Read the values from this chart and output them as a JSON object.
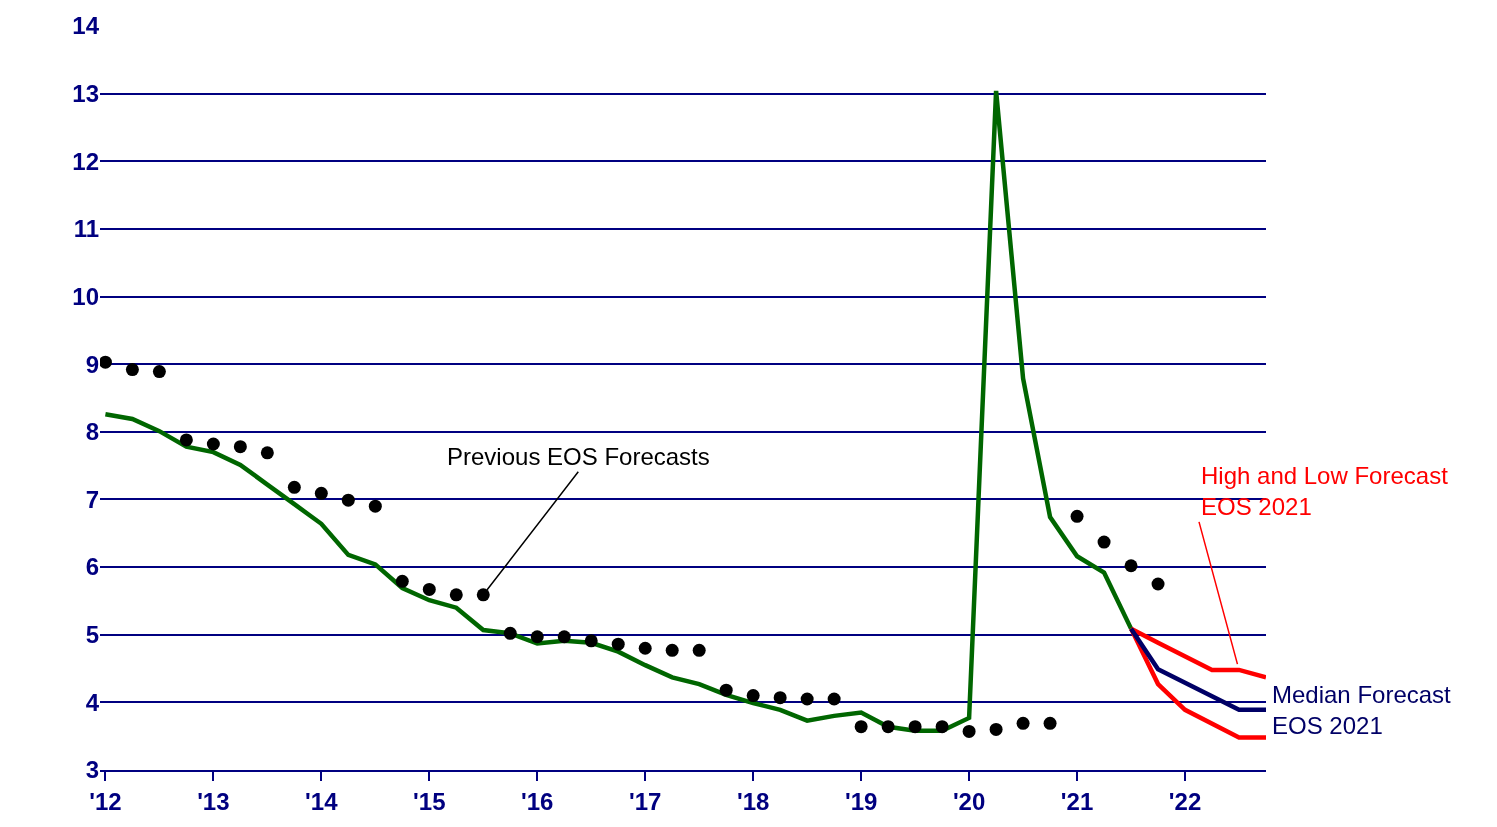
{
  "chart_data": {
    "type": "line",
    "xlim": [
      2011.95,
      2022.75
    ],
    "xticks": [
      {
        "value": 2012,
        "label": "'12"
      },
      {
        "value": 2013,
        "label": "'13"
      },
      {
        "value": 2014,
        "label": "'14"
      },
      {
        "value": 2015,
        "label": "'15"
      },
      {
        "value": 2016,
        "label": "'16"
      },
      {
        "value": 2017,
        "label": "'17"
      },
      {
        "value": 2018,
        "label": "'18"
      },
      {
        "value": 2019,
        "label": "'19"
      },
      {
        "value": 2020,
        "label": "'20"
      },
      {
        "value": 2021,
        "label": "'21"
      },
      {
        "value": 2022,
        "label": "'22"
      }
    ],
    "ylim": [
      3,
      14
    ],
    "yticks": [
      3,
      4,
      5,
      6,
      7,
      8,
      9,
      10,
      11,
      12,
      13,
      14
    ],
    "grid": "y",
    "legend": false,
    "line_style": "solid",
    "series": [
      {
        "color": "#006600",
        "marker": "none",
        "x": [
          2012.0,
          2012.25,
          2012.5,
          2012.75,
          2013.0,
          2013.25,
          2013.5,
          2013.75,
          2014.0,
          2014.25,
          2014.5,
          2014.75,
          2015.0,
          2015.25,
          2015.5,
          2015.75,
          2016.0,
          2016.25,
          2016.5,
          2016.75,
          2017.0,
          2017.25,
          2017.5,
          2017.75,
          2018.0,
          2018.25,
          2018.5,
          2018.75,
          2019.0,
          2019.25,
          2019.5,
          2019.75,
          2020.0,
          2020.25,
          2020.5,
          2020.75,
          2021.0,
          2021.25,
          2021.5
        ],
        "values": [
          8.26,
          8.19,
          8.01,
          7.78,
          7.7,
          7.51,
          7.22,
          6.93,
          6.64,
          6.18,
          6.04,
          5.69,
          5.51,
          5.4,
          5.07,
          5.02,
          4.87,
          4.91,
          4.88,
          4.75,
          4.55,
          4.37,
          4.27,
          4.11,
          3.99,
          3.89,
          3.73,
          3.8,
          3.85,
          3.64,
          3.58,
          3.58,
          3.77,
          13.04,
          8.79,
          6.74,
          6.16,
          5.92,
          5.09
        ]
      },
      {
        "type": "scatter",
        "color": "#000000",
        "marker": "circle",
        "x": [
          2012.0,
          2012.25,
          2012.5,
          2012.75,
          2013.0,
          2013.25,
          2013.5,
          2013.75,
          2014.0,
          2014.25,
          2014.5,
          2014.75,
          2015.0,
          2015.25,
          2015.5,
          2015.75,
          2016.0,
          2016.25,
          2016.5,
          2016.75,
          2017.0,
          2017.25,
          2017.5,
          2017.75,
          2018.0,
          2018.25,
          2018.5,
          2018.75,
          2019.0,
          2019.25,
          2019.5,
          2019.75,
          2020.0,
          2020.25,
          2020.5,
          2020.75,
          2021.0,
          2021.25,
          2021.5,
          2021.75
        ],
        "values": [
          9.03,
          8.92,
          8.89,
          7.88,
          7.82,
          7.78,
          7.69,
          7.18,
          7.09,
          6.99,
          6.9,
          5.79,
          5.67,
          5.59,
          5.59,
          5.02,
          4.97,
          4.97,
          4.91,
          4.86,
          4.8,
          4.77,
          4.77,
          4.18,
          4.1,
          4.07,
          4.05,
          4.05,
          3.64,
          3.64,
          3.64,
          3.64,
          3.57,
          3.6,
          3.69,
          3.69,
          6.75,
          6.37,
          6.02,
          5.75
        ]
      },
      {
        "color": "#ff0000",
        "marker": "none",
        "x": [
          2021.5,
          2021.75,
          2022.25,
          2022.5,
          2022.75
        ],
        "values": [
          5.09,
          4.88,
          4.48,
          4.48,
          4.37
        ]
      },
      {
        "color": "#ff0000",
        "marker": "none",
        "x": [
          2021.5,
          2021.75,
          2022.0,
          2022.5,
          2022.75
        ],
        "values": [
          5.09,
          4.27,
          3.89,
          3.48,
          3.48
        ]
      },
      {
        "name": "Median Forecast\nEOS 2021",
        "color": "#000066",
        "marker": "none",
        "x": [
          2021.5,
          2021.75,
          2022.5,
          2022.75
        ],
        "values": [
          5.09,
          4.49,
          3.89,
          3.89
        ]
      }
    ],
    "annotations": [
      {
        "text": "Previous EOS Forecasts",
        "x": 2015.5,
        "y": 5.59
      },
      {
        "text": "High and Low Forecast\nEOS 2021",
        "x": 2022.5,
        "y": 4.48
      }
    ]
  }
}
